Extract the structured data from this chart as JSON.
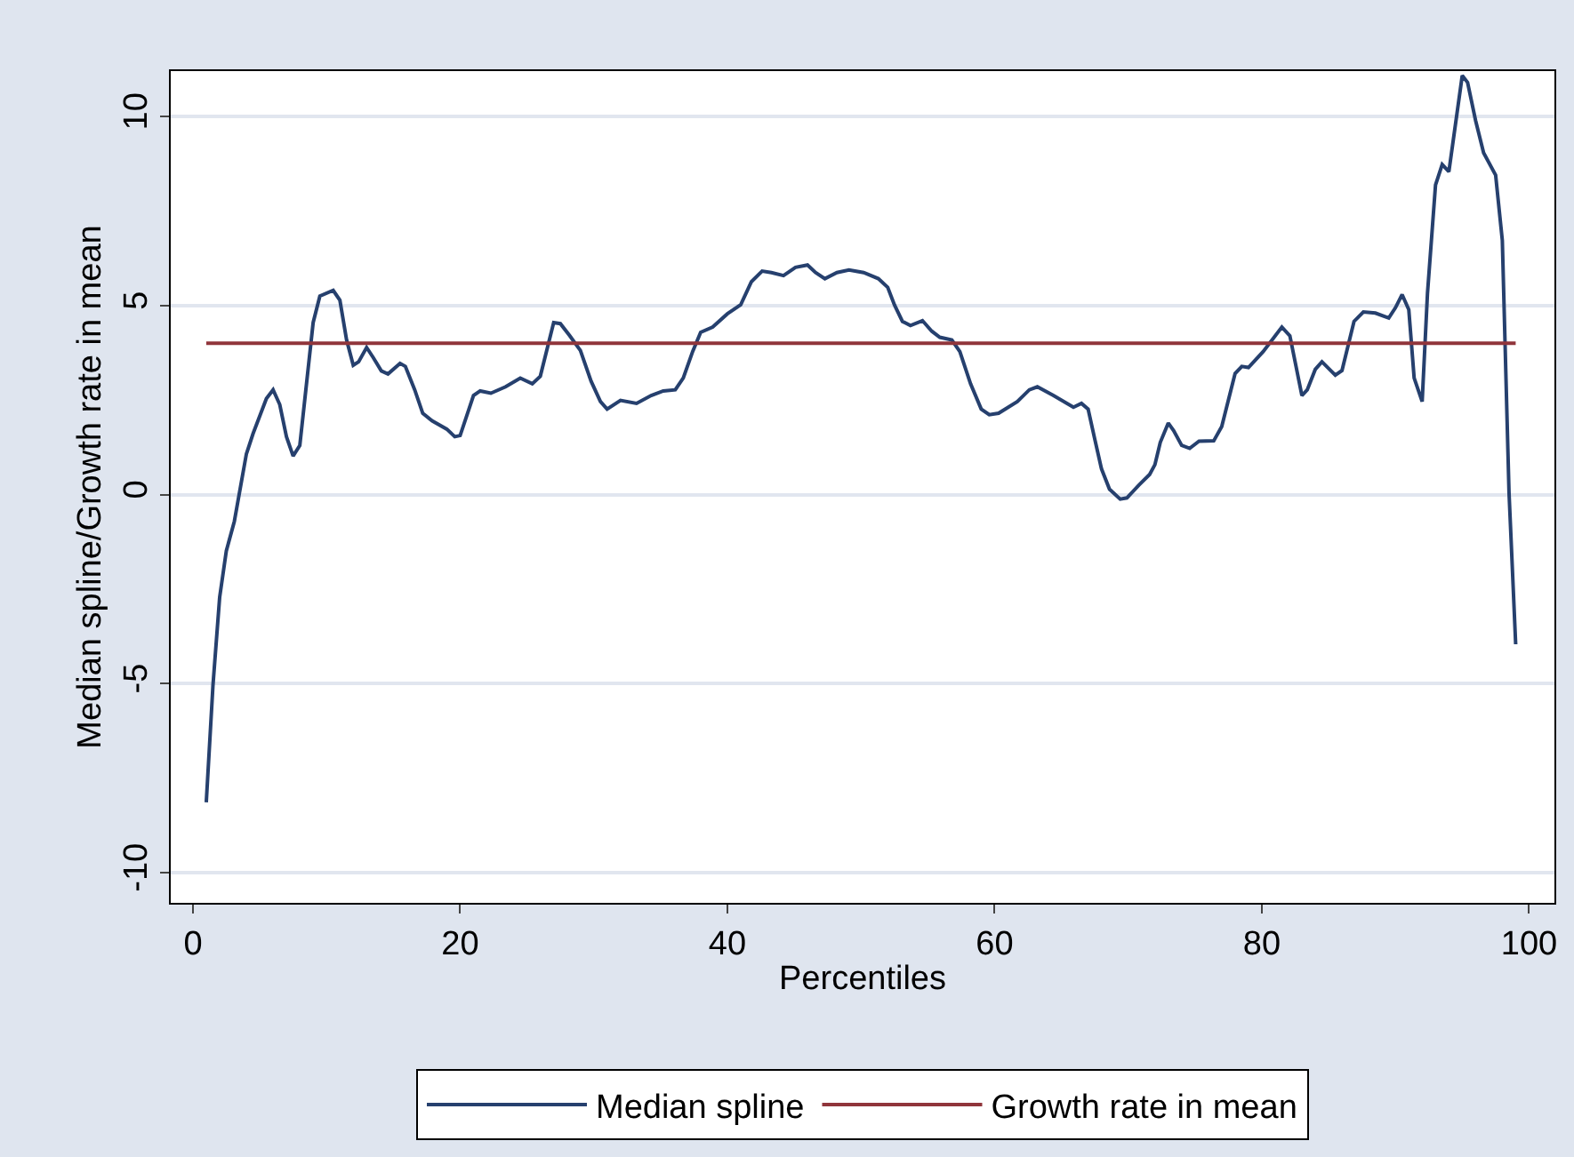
{
  "chart_data": {
    "type": "line",
    "xlabel": "Percentiles",
    "ylabel": "Median spline/Growth rate in mean",
    "xlim": [
      -1.66,
      101.9
    ],
    "ylim": [
      -10.8,
      11.2
    ],
    "xticks": [
      0,
      20,
      40,
      60,
      80,
      100
    ],
    "yticks": [
      -10,
      -5,
      0,
      5,
      10
    ],
    "grid": "y",
    "legend": "bottom",
    "marker": "none",
    "line_style": "solid",
    "series": [
      {
        "name": "Median spline",
        "color": "#26406e",
        "x": [
          1,
          1.5,
          2,
          2.5,
          3.1,
          4,
          4.5,
          5.5,
          6,
          6.5,
          7,
          7.5,
          8,
          9,
          9.5,
          10.5,
          11,
          11.5,
          12,
          12.4,
          13,
          13.5,
          14.1,
          14.6,
          15.5,
          15.9,
          16.6,
          17.2,
          17.9,
          19,
          19.6,
          20,
          21,
          21.5,
          22.3,
          23.4,
          24.5,
          25.4,
          26,
          27,
          27.5,
          28.2,
          29,
          29.8,
          30.5,
          31,
          32,
          33.2,
          34.3,
          35.2,
          36.1,
          36.7,
          37.4,
          38,
          38.9,
          40,
          41,
          41.8,
          42.6,
          43.3,
          44.2,
          45.1,
          46,
          46.6,
          47.3,
          48.2,
          49.1,
          50.2,
          51.3,
          52,
          52.5,
          53.1,
          53.7,
          54.6,
          55.3,
          55.9,
          56.8,
          57.4,
          58.2,
          59,
          59.6,
          60.3,
          61.7,
          62.6,
          63.2,
          64.4,
          65.9,
          66.5,
          67,
          67.5,
          68,
          68.6,
          69.4,
          69.9,
          70.8,
          71.6,
          72,
          72.4,
          73,
          73.4,
          74,
          74.6,
          75.3,
          76.4,
          77,
          78,
          78.5,
          79,
          80.1,
          81.5,
          82.1,
          83,
          83.4,
          84,
          84.5,
          85.5,
          86,
          86.9,
          87.6,
          88.5,
          89.5,
          90,
          90.5,
          91,
          91.4,
          92,
          92.4,
          93,
          93.5,
          94,
          95,
          95.4,
          96,
          96.6,
          97.5,
          98,
          98.5,
          99
        ],
        "values": [
          -8.14,
          -5.05,
          -2.72,
          -1.49,
          -0.71,
          1.07,
          1.61,
          2.54,
          2.77,
          2.38,
          1.53,
          1.02,
          1.3,
          4.55,
          5.25,
          5.4,
          5.14,
          4.09,
          3.42,
          3.51,
          3.89,
          3.62,
          3.27,
          3.19,
          3.47,
          3.39,
          2.77,
          2.15,
          1.95,
          1.73,
          1.53,
          1.56,
          2.62,
          2.74,
          2.68,
          2.85,
          3.08,
          2.93,
          3.13,
          4.55,
          4.52,
          4.2,
          3.81,
          3.0,
          2.46,
          2.26,
          2.49,
          2.41,
          2.62,
          2.74,
          2.77,
          3.08,
          3.78,
          4.29,
          4.43,
          4.78,
          5.02,
          5.63,
          5.91,
          5.87,
          5.79,
          6.01,
          6.07,
          5.87,
          5.71,
          5.87,
          5.94,
          5.87,
          5.71,
          5.48,
          5.02,
          4.58,
          4.47,
          4.6,
          4.32,
          4.16,
          4.09,
          3.78,
          2.93,
          2.26,
          2.11,
          2.15,
          2.46,
          2.77,
          2.85,
          2.62,
          2.31,
          2.41,
          2.26,
          1.46,
          0.68,
          0.14,
          -0.12,
          -0.09,
          0.25,
          0.53,
          0.79,
          1.38,
          1.89,
          1.69,
          1.3,
          1.22,
          1.41,
          1.42,
          1.8,
          3.2,
          3.39,
          3.36,
          3.78,
          4.43,
          4.2,
          2.62,
          2.77,
          3.31,
          3.51,
          3.16,
          3.28,
          4.58,
          4.83,
          4.8,
          4.67,
          4.94,
          5.29,
          4.89,
          3.08,
          2.46,
          5.33,
          8.19,
          8.73,
          8.54,
          11.08,
          10.9,
          9.89,
          9.04,
          8.45,
          6.72,
          0.06,
          -3.96
        ]
      },
      {
        "name": "Growth rate in mean",
        "color": "#90353b",
        "x": [
          1,
          99
        ],
        "values": [
          4,
          4
        ]
      }
    ]
  }
}
